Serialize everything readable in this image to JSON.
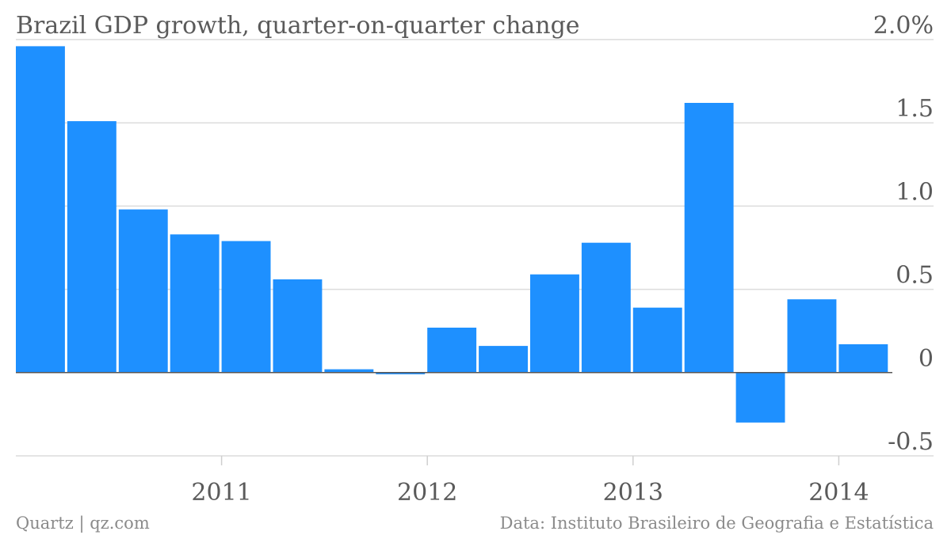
{
  "chart_data": {
    "type": "bar",
    "title": "Brazil GDP growth, quarter-on-quarter change",
    "unit_suffix": "%",
    "color": "#1e90ff",
    "ylim": [
      -0.5,
      2.0
    ],
    "yticks": [
      {
        "value": 2.0,
        "label": "2.0%"
      },
      {
        "value": 1.5,
        "label": "1.5"
      },
      {
        "value": 1.0,
        "label": "1.0"
      },
      {
        "value": 0.5,
        "label": "0.5"
      },
      {
        "value": 0,
        "label": "0"
      },
      {
        "value": -0.5,
        "label": "-0.5"
      }
    ],
    "categories": [
      "2010 Q1",
      "2010 Q2",
      "2010 Q3",
      "2010 Q4",
      "2011 Q1",
      "2011 Q2",
      "2011 Q3",
      "2011 Q4",
      "2012 Q1",
      "2012 Q2",
      "2012 Q3",
      "2012 Q4",
      "2013 Q1",
      "2013 Q2",
      "2013 Q3",
      "2013 Q4",
      "2014 Q1",
      "2014 Q2"
    ],
    "values": [
      1.96,
      1.51,
      0.98,
      0.83,
      0.79,
      0.56,
      0.02,
      -0.01,
      0.27,
      0.16,
      0.59,
      0.78,
      0.39,
      1.62,
      -0.3,
      0.44,
      0.17,
      null
    ],
    "xticks": [
      {
        "before_index": 4,
        "label": "2011"
      },
      {
        "before_index": 8,
        "label": "2012"
      },
      {
        "before_index": 12,
        "label": "2013"
      },
      {
        "before_index": 16,
        "label": "2014"
      }
    ],
    "grid": true
  },
  "footer": {
    "source_left": "Quartz | qz.com",
    "source_right": "Data: Instituto Brasileiro de Geografia e Estatística"
  }
}
